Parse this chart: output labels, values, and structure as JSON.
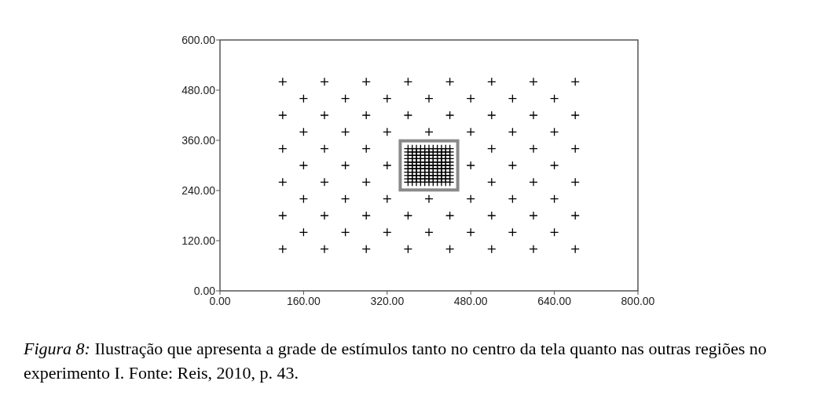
{
  "chart_data": {
    "type": "scatter",
    "marker": "cross",
    "grid": false,
    "xlim": [
      0,
      800
    ],
    "ylim": [
      0,
      600
    ],
    "xticks": [
      {
        "value": 0,
        "label": "0.00"
      },
      {
        "value": 160,
        "label": "160.00"
      },
      {
        "value": 320,
        "label": "320.00"
      },
      {
        "value": 480,
        "label": "480.00"
      },
      {
        "value": 640,
        "label": "640.00"
      },
      {
        "value": 800,
        "label": "800.00"
      }
    ],
    "yticks": [
      {
        "value": 0,
        "label": "0.00"
      },
      {
        "value": 120,
        "label": "120.00"
      },
      {
        "value": 240,
        "label": "240.00"
      },
      {
        "value": 360,
        "label": "360.00"
      },
      {
        "value": 480,
        "label": "480.00"
      },
      {
        "value": 600,
        "label": "600.00"
      }
    ],
    "series": [
      {
        "color": "#000000",
        "x": [
          120,
          200,
          280,
          360,
          440,
          520,
          600,
          680,
          160,
          240,
          320,
          400,
          480,
          560,
          640,
          120,
          200,
          280,
          360,
          440,
          520,
          600,
          680,
          160,
          240,
          320,
          400,
          480,
          560,
          640,
          120,
          200,
          280,
          520,
          600,
          680,
          160,
          240,
          320,
          480,
          560,
          640,
          120,
          200,
          280,
          520,
          600,
          680,
          160,
          240,
          320,
          400,
          480,
          560,
          640,
          120,
          200,
          280,
          360,
          440,
          520,
          600,
          680,
          160,
          240,
          320,
          400,
          480,
          560,
          640,
          120,
          200,
          280,
          360,
          440,
          520,
          600,
          680
        ],
        "values": [
          500,
          500,
          500,
          500,
          500,
          500,
          500,
          500,
          460,
          460,
          460,
          460,
          460,
          460,
          460,
          420,
          420,
          420,
          420,
          420,
          420,
          420,
          420,
          380,
          380,
          380,
          380,
          380,
          380,
          380,
          340,
          340,
          340,
          340,
          340,
          340,
          300,
          300,
          300,
          300,
          300,
          300,
          260,
          260,
          260,
          260,
          260,
          260,
          220,
          220,
          220,
          220,
          220,
          220,
          220,
          180,
          180,
          180,
          180,
          180,
          180,
          180,
          180,
          140,
          140,
          140,
          140,
          140,
          140,
          140,
          100,
          100,
          100,
          100,
          100,
          100,
          100,
          100
        ]
      },
      {
        "color": "#000000",
        "x": [
          360,
          368,
          376,
          384,
          392,
          400,
          408,
          416,
          424,
          432,
          440,
          360,
          368,
          376,
          384,
          392,
          400,
          408,
          416,
          424,
          432,
          440,
          360,
          368,
          376,
          384,
          392,
          400,
          408,
          416,
          424,
          432,
          440,
          360,
          368,
          376,
          384,
          392,
          400,
          408,
          416,
          424,
          432,
          440,
          360,
          368,
          376,
          384,
          392,
          400,
          408,
          416,
          424,
          432,
          440,
          360,
          368,
          376,
          384,
          392,
          400,
          408,
          416,
          424,
          432,
          440,
          360,
          368,
          376,
          384,
          392,
          400,
          408,
          416,
          424,
          432,
          440,
          360,
          368,
          376,
          384,
          392,
          400,
          408,
          416,
          424,
          432,
          440,
          360,
          368,
          376,
          384,
          392,
          400,
          408,
          416,
          424,
          432,
          440,
          360,
          368,
          376,
          384,
          392,
          400,
          408,
          416,
          424,
          432,
          440,
          360,
          368,
          376,
          384,
          392,
          400,
          408,
          416,
          424,
          432,
          440
        ],
        "values": [
          340,
          340,
          340,
          340,
          340,
          340,
          340,
          340,
          340,
          340,
          340,
          332,
          332,
          332,
          332,
          332,
          332,
          332,
          332,
          332,
          332,
          332,
          324,
          324,
          324,
          324,
          324,
          324,
          324,
          324,
          324,
          324,
          324,
          316,
          316,
          316,
          316,
          316,
          316,
          316,
          316,
          316,
          316,
          316,
          308,
          308,
          308,
          308,
          308,
          308,
          308,
          308,
          308,
          308,
          308,
          300,
          300,
          300,
          300,
          300,
          300,
          300,
          300,
          300,
          300,
          300,
          292,
          292,
          292,
          292,
          292,
          292,
          292,
          292,
          292,
          292,
          292,
          284,
          284,
          284,
          284,
          284,
          284,
          284,
          284,
          284,
          284,
          284,
          276,
          276,
          276,
          276,
          276,
          276,
          276,
          276,
          276,
          276,
          276,
          268,
          268,
          268,
          268,
          268,
          268,
          268,
          268,
          268,
          268,
          268,
          260,
          260,
          260,
          260,
          260,
          260,
          260,
          260,
          260,
          260,
          260
        ]
      }
    ],
    "annotations": [
      "Figura 8: Ilustração que apresenta a grade de estímulos tanto no centro da tela quanto nas outras regiões no experimento I. Fonte: Reis, 2010, p. 43."
    ]
  }
}
